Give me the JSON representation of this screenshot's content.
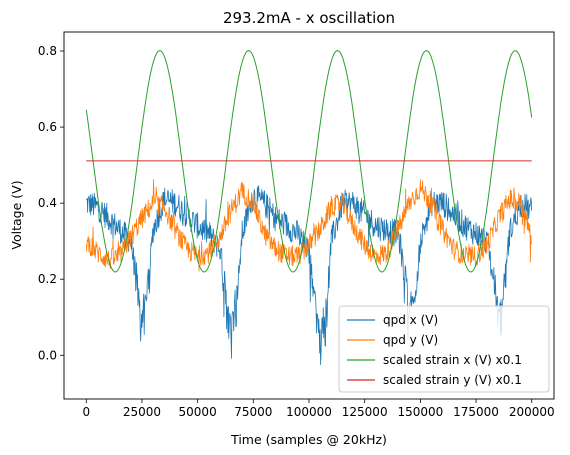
{
  "chart_data": {
    "type": "line",
    "title": "293.2mA - x oscillation",
    "xlabel": "Time (samples @ 20kHz)",
    "ylabel": "Voltage (V)",
    "xlim": [
      -10000,
      210000
    ],
    "ylim": [
      -0.115,
      0.85
    ],
    "xticks": [
      0,
      25000,
      50000,
      75000,
      100000,
      125000,
      150000,
      175000,
      200000
    ],
    "yticks": [
      0.0,
      0.2,
      0.4,
      0.6,
      0.8
    ],
    "xtick_labels": [
      "0",
      "25000",
      "50000",
      "75000",
      "100000",
      "125000",
      "150000",
      "175000",
      "200000"
    ],
    "ytick_labels": [
      "0.0",
      "0.2",
      "0.4",
      "0.6",
      "0.8"
    ],
    "grid": false,
    "legend_position": "lower-right",
    "series": [
      {
        "name": "qpd x (V)",
        "color": "#1f77b4",
        "noisy": true,
        "x": [
          0,
          5000,
          10000,
          15000,
          20000,
          22000,
          25000,
          28000,
          30000,
          35000,
          40000,
          45000,
          50000,
          55000,
          60000,
          62000,
          65000,
          68000,
          70000,
          75000,
          80000,
          85000,
          90000,
          95000,
          100000,
          103000,
          105000,
          108000,
          110000,
          115000,
          120000,
          125000,
          130000,
          135000,
          140000,
          143000,
          145000,
          148000,
          150000,
          155000,
          160000,
          165000,
          170000,
          175000,
          180000,
          183000,
          185000,
          188000,
          190000,
          195000,
          200000
        ],
        "y": [
          0.4,
          0.39,
          0.36,
          0.33,
          0.3,
          0.22,
          0.1,
          0.2,
          0.33,
          0.41,
          0.4,
          0.37,
          0.34,
          0.32,
          0.28,
          0.2,
          0.08,
          0.18,
          0.32,
          0.42,
          0.4,
          0.36,
          0.34,
          0.32,
          0.27,
          0.15,
          0.05,
          0.15,
          0.3,
          0.4,
          0.4,
          0.37,
          0.34,
          0.33,
          0.32,
          0.22,
          0.12,
          0.18,
          0.3,
          0.4,
          0.4,
          0.37,
          0.34,
          0.32,
          0.3,
          0.2,
          0.12,
          0.2,
          0.32,
          0.4,
          0.38
        ]
      },
      {
        "name": "qpd y (V)",
        "color": "#ff7f0e",
        "noisy": true,
        "x": [
          0,
          5000,
          10000,
          15000,
          20000,
          25000,
          30000,
          35000,
          40000,
          45000,
          50000,
          55000,
          60000,
          65000,
          70000,
          75000,
          80000,
          85000,
          90000,
          95000,
          100000,
          105000,
          110000,
          115000,
          120000,
          125000,
          130000,
          135000,
          140000,
          145000,
          150000,
          155000,
          160000,
          165000,
          170000,
          175000,
          180000,
          185000,
          190000,
          195000,
          200000
        ],
        "y": [
          0.3,
          0.27,
          0.25,
          0.26,
          0.31,
          0.36,
          0.4,
          0.39,
          0.33,
          0.28,
          0.26,
          0.27,
          0.31,
          0.38,
          0.43,
          0.4,
          0.32,
          0.28,
          0.26,
          0.26,
          0.29,
          0.33,
          0.39,
          0.4,
          0.34,
          0.29,
          0.26,
          0.27,
          0.33,
          0.4,
          0.44,
          0.4,
          0.33,
          0.28,
          0.26,
          0.26,
          0.29,
          0.36,
          0.41,
          0.4,
          0.31
        ]
      },
      {
        "name": "scaled strain x (V) x0.1",
        "color": "#2ca02c",
        "noisy": false,
        "sine": {
          "offset": 0.51,
          "amplitude": 0.291,
          "period": 39900,
          "peak_at": 33000
        }
      },
      {
        "name": "scaled strain y (V) x0.1",
        "color": "#d62728",
        "noisy": false,
        "x": [
          0,
          200000
        ],
        "y": [
          0.511,
          0.511
        ]
      }
    ]
  }
}
